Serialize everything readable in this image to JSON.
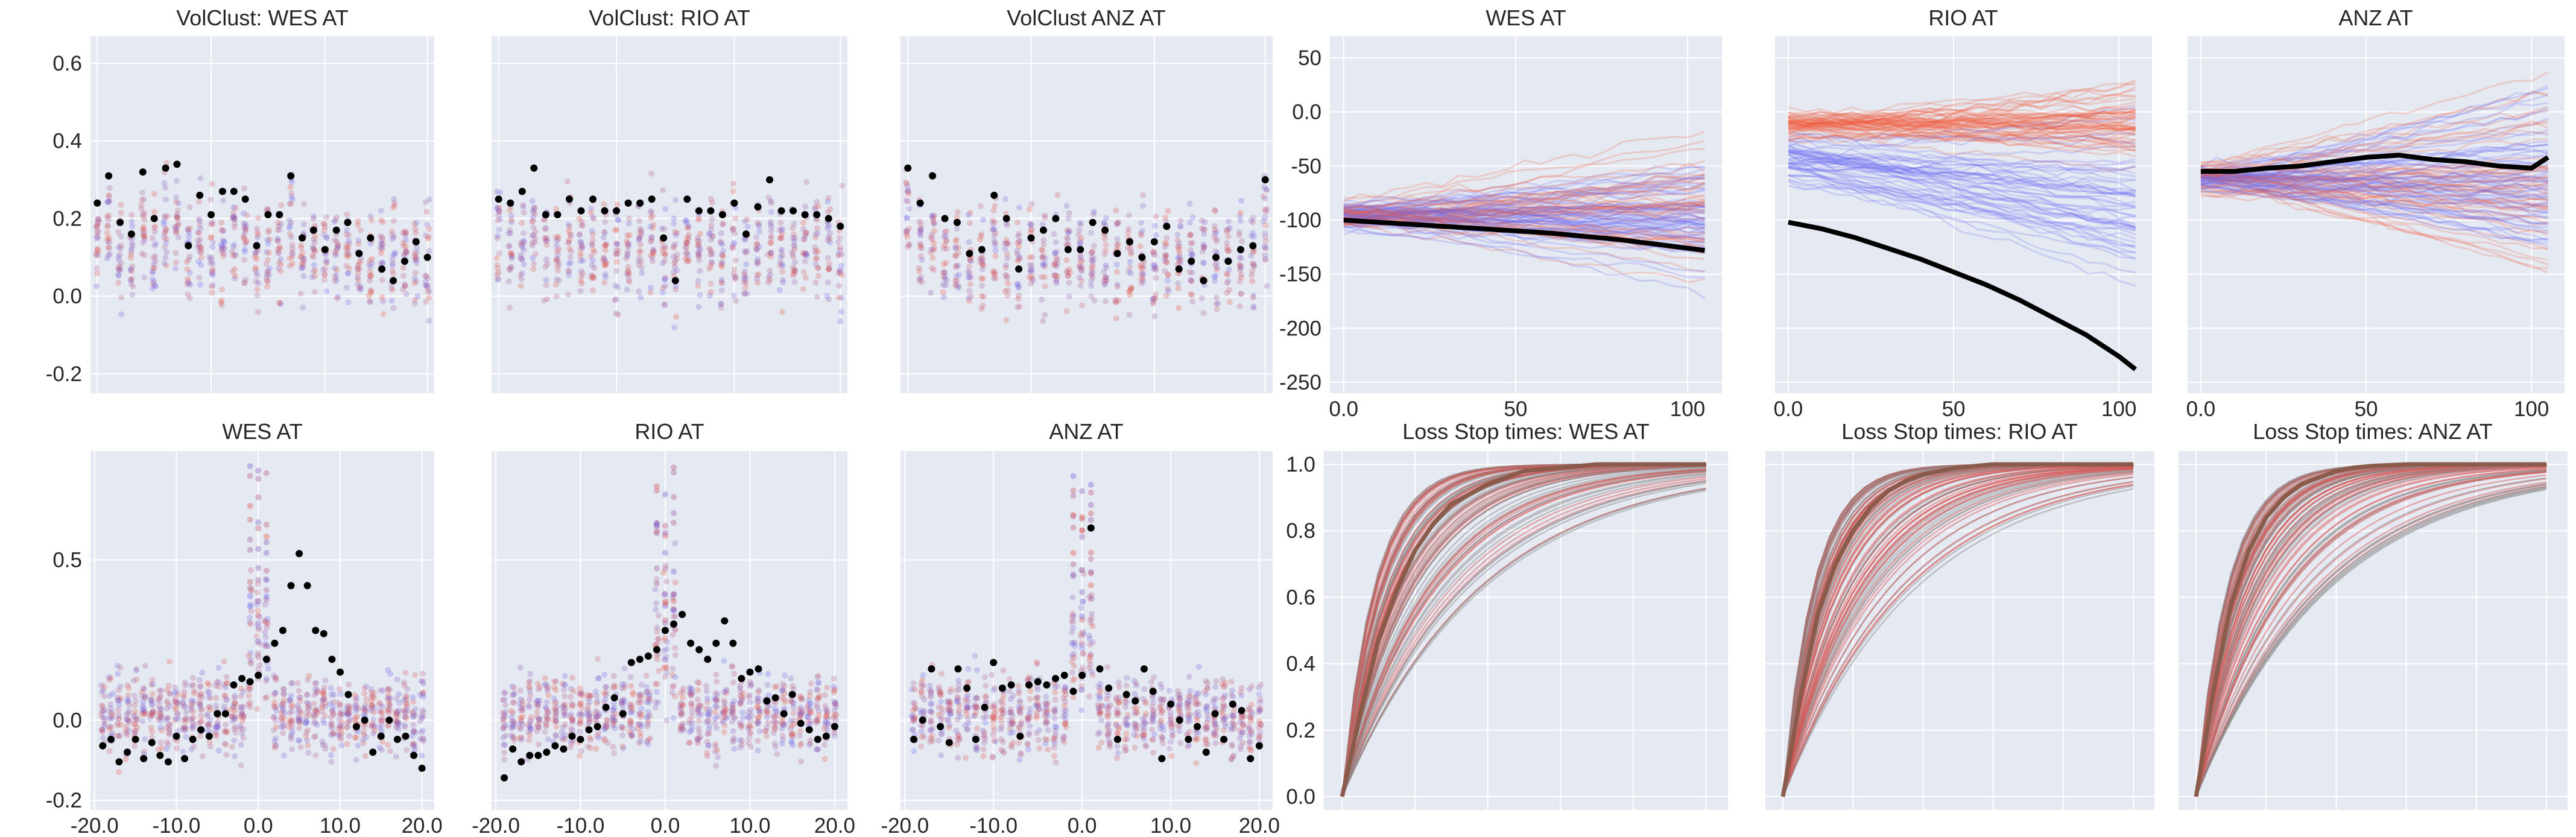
{
  "colors": {
    "panel_bg": "#e5e9f2",
    "grid": "#ffffff",
    "blue": "#6a6af0",
    "red": "#f05a3c",
    "black": "#000000",
    "stop_red": "#d9534f",
    "stop_gray": "#888888",
    "stop_mean": "#8a5a4a"
  },
  "chart_data": [
    {
      "id": "vc-wes",
      "type": "scatter",
      "title": "VolClust: WES AT",
      "x": [
        0,
        1,
        2,
        3,
        4,
        5,
        6,
        7,
        8,
        9,
        10,
        11,
        12,
        13,
        14,
        15,
        16,
        17,
        18,
        19,
        20,
        21,
        22,
        23,
        24,
        25,
        26,
        27,
        28,
        29
      ],
      "mean": [
        0.24,
        0.31,
        0.19,
        0.16,
        0.32,
        0.2,
        0.33,
        0.34,
        0.13,
        0.26,
        0.21,
        0.27,
        0.27,
        0.25,
        0.13,
        0.21,
        0.21,
        0.31,
        0.15,
        0.17,
        0.12,
        0.17,
        0.19,
        0.11,
        0.15,
        0.07,
        0.04,
        0.09,
        0.14,
        0.1
      ],
      "xlim": [
        -0.6,
        29.6
      ],
      "ylim": [
        -0.25,
        0.67
      ],
      "yticks": [
        -0.2,
        0.0,
        0.2,
        0.4,
        0.6
      ],
      "ytick_labels": [
        "-0.2",
        "0.0",
        "0.2",
        "0.4",
        "0.6"
      ],
      "xticks": [],
      "xtick_labels": []
    },
    {
      "id": "vc-rio",
      "type": "scatter",
      "title": "VolClust: RIO AT",
      "x": [
        0,
        1,
        2,
        3,
        4,
        5,
        6,
        7,
        8,
        9,
        10,
        11,
        12,
        13,
        14,
        15,
        16,
        17,
        18,
        19,
        20,
        21,
        22,
        23,
        24,
        25,
        26,
        27,
        28,
        29
      ],
      "mean": [
        0.25,
        0.24,
        0.27,
        0.33,
        0.21,
        0.21,
        0.25,
        0.22,
        0.25,
        0.22,
        0.22,
        0.24,
        0.24,
        0.25,
        0.15,
        0.04,
        0.25,
        0.22,
        0.22,
        0.21,
        0.24,
        0.16,
        0.23,
        0.3,
        0.22,
        0.22,
        0.21,
        0.21,
        0.2,
        0.18
      ],
      "xlim": [
        -0.6,
        29.6
      ],
      "ylim": [
        -0.25,
        0.67
      ],
      "yticks": [],
      "ytick_labels": [],
      "xticks": [],
      "xtick_labels": []
    },
    {
      "id": "vc-anz",
      "type": "scatter",
      "title": "VolClust ANZ AT",
      "x": [
        0,
        1,
        2,
        3,
        4,
        5,
        6,
        7,
        8,
        9,
        10,
        11,
        12,
        13,
        14,
        15,
        16,
        17,
        18,
        19,
        20,
        21,
        22,
        23,
        24,
        25,
        26,
        27,
        28,
        29
      ],
      "mean": [
        0.33,
        0.24,
        0.31,
        0.2,
        0.19,
        0.11,
        0.12,
        0.26,
        0.2,
        0.07,
        0.15,
        0.17,
        0.2,
        0.12,
        0.12,
        0.19,
        0.17,
        0.11,
        0.14,
        0.1,
        0.14,
        0.18,
        0.07,
        0.09,
        0.04,
        0.1,
        0.09,
        0.12,
        0.13,
        0.3
      ],
      "xlim": [
        -0.6,
        29.6
      ],
      "ylim": [
        -0.25,
        0.67
      ],
      "yticks": [],
      "ytick_labels": [],
      "xticks": [],
      "xtick_labels": []
    },
    {
      "id": "ac-wes",
      "type": "scatter",
      "title": "WES AT",
      "x": [
        -19,
        -18,
        -17,
        -16,
        -15,
        -14,
        -13,
        -12,
        -11,
        -10,
        -9,
        -8,
        -7,
        -6,
        -5,
        -4,
        -3,
        -2,
        -1,
        0,
        1,
        2,
        3,
        4,
        5,
        6,
        7,
        8,
        9,
        10,
        11,
        12,
        13,
        14,
        15,
        16,
        17,
        18,
        19,
        20
      ],
      "mean": [
        -0.08,
        -0.06,
        -0.13,
        -0.1,
        -0.06,
        -0.12,
        -0.07,
        -0.11,
        -0.13,
        -0.05,
        -0.12,
        -0.06,
        -0.03,
        -0.05,
        0.02,
        0.02,
        0.11,
        0.13,
        0.12,
        0.14,
        0.19,
        0.24,
        0.28,
        0.42,
        0.52,
        0.42,
        0.28,
        0.27,
        0.19,
        0.15,
        0.08,
        -0.02,
        0.0,
        -0.1,
        -0.05,
        0.0,
        -0.06,
        -0.05,
        -0.11,
        -0.15
      ],
      "xlim": [
        -20.5,
        21.5
      ],
      "ylim": [
        -0.28,
        0.84
      ],
      "yticks": [
        -0.25,
        0.0,
        0.5
      ],
      "ytick_labels": [
        "-0.2",
        "0.0",
        "0.5"
      ],
      "xticks": [
        -20,
        -10,
        0,
        10,
        20
      ],
      "xtick_labels": [
        "-20.0",
        "-10.0",
        "0.0",
        "10.0",
        "20.0"
      ]
    },
    {
      "id": "ac-rio",
      "type": "scatter",
      "title": "RIO AT",
      "x": [
        -19,
        -18,
        -17,
        -16,
        -15,
        -14,
        -13,
        -12,
        -11,
        -10,
        -9,
        -8,
        -7,
        -6,
        -5,
        -4,
        -3,
        -2,
        -1,
        0,
        1,
        2,
        3,
        4,
        5,
        6,
        7,
        8,
        9,
        10,
        11,
        12,
        13,
        14,
        15,
        16,
        17,
        18,
        19,
        20
      ],
      "mean": [
        -0.18,
        -0.09,
        -0.13,
        -0.11,
        -0.11,
        -0.1,
        -0.08,
        -0.09,
        -0.05,
        -0.06,
        -0.03,
        -0.02,
        0.04,
        0.07,
        0.02,
        0.18,
        0.19,
        0.2,
        0.22,
        0.28,
        0.3,
        0.33,
        0.24,
        0.22,
        0.19,
        0.24,
        0.31,
        0.24,
        0.13,
        0.15,
        0.16,
        0.06,
        0.07,
        0.02,
        0.08,
        -0.01,
        -0.03,
        -0.06,
        -0.05,
        -0.02
      ],
      "xlim": [
        -20.5,
        21.5
      ],
      "ylim": [
        -0.28,
        0.84
      ],
      "yticks": [],
      "ytick_labels": [],
      "xticks": [
        -20,
        -10,
        0,
        10,
        20
      ],
      "xtick_labels": [
        "-20.0",
        "-10.0",
        "0.0",
        "10.0",
        "20.0"
      ]
    },
    {
      "id": "ac-anz",
      "type": "scatter",
      "title": "ANZ AT",
      "x": [
        -19,
        -18,
        -17,
        -16,
        -15,
        -14,
        -13,
        -12,
        -11,
        -10,
        -9,
        -8,
        -7,
        -6,
        -5,
        -4,
        -3,
        -2,
        -1,
        0,
        1,
        2,
        3,
        4,
        5,
        6,
        7,
        8,
        9,
        10,
        11,
        12,
        13,
        14,
        15,
        16,
        17,
        18,
        19,
        20
      ],
      "mean": [
        -0.06,
        0.0,
        0.16,
        -0.02,
        -0.07,
        0.16,
        0.1,
        -0.06,
        0.04,
        0.18,
        0.1,
        0.11,
        -0.05,
        0.11,
        0.12,
        0.11,
        0.13,
        0.14,
        0.09,
        0.14,
        0.6,
        0.16,
        0.1,
        -0.06,
        0.08,
        0.06,
        0.16,
        0.09,
        -0.12,
        0.05,
        0.0,
        -0.06,
        -0.02,
        -0.1,
        0.02,
        -0.06,
        0.05,
        0.03,
        -0.12,
        -0.08
      ],
      "xlim": [
        -20.5,
        21.5
      ],
      "ylim": [
        -0.28,
        0.84
      ],
      "yticks": [],
      "ytick_labels": [],
      "xticks": [
        -20,
        -10,
        0,
        10,
        20
      ],
      "xtick_labels": [
        "-20.0",
        "-10.0",
        "0.0",
        "10.0",
        "20.0"
      ]
    },
    {
      "id": "pr-wes",
      "type": "line",
      "title": "WES AT",
      "x": [
        0,
        10,
        20,
        30,
        40,
        50,
        60,
        70,
        80,
        90,
        100,
        105
      ],
      "mean": [
        -100,
        -102,
        -104,
        -106,
        -108,
        -110,
        -112,
        -115,
        -118,
        -122,
        -126,
        -128
      ],
      "xlim": [
        -4,
        110
      ],
      "ylim": [
        -260,
        70
      ],
      "yticks": [
        -250,
        -200,
        -150,
        -100,
        -50,
        0,
        50
      ],
      "ytick_labels": [
        "-250",
        "-200",
        "-150",
        "-100",
        "-50",
        "0.0",
        "50"
      ],
      "xticks": [
        0,
        50,
        100
      ],
      "xtick_labels": [
        "0.0",
        "50",
        "100"
      ]
    },
    {
      "id": "pr-rio",
      "type": "line",
      "title": "RIO AT",
      "x": [
        0,
        10,
        20,
        30,
        40,
        50,
        60,
        70,
        80,
        90,
        100,
        105
      ],
      "mean": [
        -102,
        -108,
        -116,
        -126,
        -136,
        -148,
        -160,
        -174,
        -190,
        -206,
        -226,
        -238
      ],
      "xlim": [
        -4,
        110
      ],
      "ylim": [
        -260,
        70
      ],
      "yticks": [],
      "ytick_labels": [],
      "xticks": [
        0,
        50,
        100
      ],
      "xtick_labels": [
        "0.0",
        "50",
        "100"
      ]
    },
    {
      "id": "pr-anz",
      "type": "line",
      "title": "ANZ AT",
      "x": [
        0,
        10,
        20,
        30,
        40,
        50,
        60,
        70,
        80,
        90,
        100,
        105
      ],
      "mean": [
        -55,
        -55,
        -52,
        -50,
        -46,
        -42,
        -40,
        -44,
        -46,
        -50,
        -52,
        -42
      ],
      "xlim": [
        -4,
        110
      ],
      "ylim": [
        -260,
        70
      ],
      "yticks": [],
      "ytick_labels": [],
      "xticks": [
        0,
        50,
        100
      ],
      "xtick_labels": [
        "0.0",
        "50",
        "100"
      ]
    },
    {
      "id": "ls-wes",
      "type": "line",
      "title": "Loss Stop times: WES AT",
      "x": [
        0,
        5,
        10,
        15,
        20,
        25,
        30,
        35,
        40,
        45,
        50,
        60,
        70,
        80,
        90,
        100
      ],
      "mean": [
        0.0,
        0.25,
        0.47,
        0.62,
        0.74,
        0.82,
        0.88,
        0.91,
        0.94,
        0.96,
        0.98,
        0.99,
        1.0,
        1.0,
        1.0,
        1.0
      ],
      "xlim": [
        -5,
        106
      ],
      "ylim": [
        -0.04,
        1.04
      ],
      "yticks": [
        0.0,
        0.2,
        0.4,
        0.6,
        0.8,
        1.0
      ],
      "ytick_labels": [
        "0.0",
        "0.2",
        "0.4",
        "0.6",
        "0.8",
        "1.0"
      ],
      "xticks": [],
      "xtick_labels": []
    },
    {
      "id": "ls-rio",
      "type": "line",
      "title": "Loss Stop times: RIO AT",
      "x": [
        0,
        5,
        10,
        15,
        20,
        25,
        30,
        35,
        40,
        45,
        50,
        60,
        70,
        80,
        90,
        100
      ],
      "mean": [
        0.0,
        0.3,
        0.55,
        0.7,
        0.8,
        0.87,
        0.92,
        0.95,
        0.97,
        0.98,
        0.99,
        1.0,
        1.0,
        1.0,
        1.0,
        1.0
      ],
      "xlim": [
        -5,
        106
      ],
      "ylim": [
        -0.04,
        1.04
      ],
      "yticks": [],
      "ytick_labels": [],
      "xticks": [],
      "xtick_labels": []
    },
    {
      "id": "ls-anz",
      "type": "line",
      "title": "Loss Stop times: ANZ AT",
      "x": [
        0,
        5,
        10,
        15,
        20,
        25,
        30,
        35,
        40,
        45,
        50,
        60,
        70,
        80,
        90,
        100
      ],
      "mean": [
        0.0,
        0.32,
        0.58,
        0.74,
        0.84,
        0.9,
        0.94,
        0.96,
        0.98,
        0.99,
        0.995,
        1.0,
        1.0,
        1.0,
        1.0,
        1.0
      ],
      "xlim": [
        -5,
        106
      ],
      "ylim": [
        -0.04,
        1.04
      ],
      "yticks": [],
      "ytick_labels": [],
      "xticks": [],
      "xtick_labels": []
    }
  ]
}
